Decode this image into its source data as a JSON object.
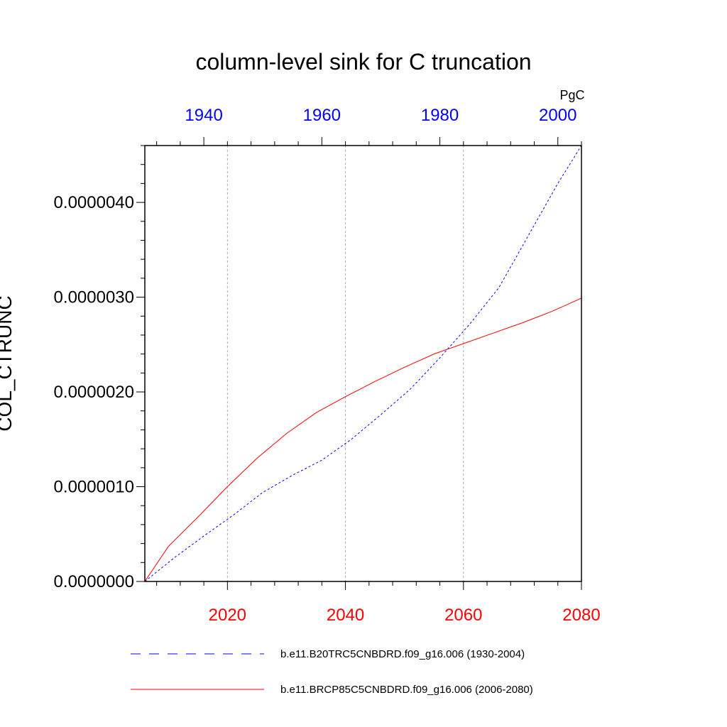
{
  "chart_data": {
    "type": "line",
    "title": "column-level sink for C truncation",
    "ylabel": "COL_CTRUNC",
    "units": "PgC",
    "ylim": [
      0,
      4.6e-06
    ],
    "y_ticks": [
      "0.0000000",
      "0.0000010",
      "0.0000020",
      "0.0000030",
      "0.0000040"
    ],
    "y_tick_values": [
      0,
      1e-06,
      2e-06,
      3e-06,
      4e-06
    ],
    "bottom_axis": {
      "min": 2006,
      "max": 2080,
      "ticks": [
        "2020",
        "2040",
        "2060",
        "2080"
      ],
      "tick_values": [
        2020,
        2040,
        2060,
        2080
      ],
      "color": "#ff0000"
    },
    "top_axis": {
      "min": 1930,
      "max": 2004,
      "ticks": [
        "1940",
        "1960",
        "1980",
        "2000"
      ],
      "tick_values": [
        1940,
        1960,
        1980,
        2000
      ],
      "color": "#0000ff"
    },
    "grid": "vertical dashed at bottom-axis ticks",
    "series": [
      {
        "name": "b.e11.B20TRC5CNBDRD.f09_g16.006 (1930-2004)",
        "axis": "top",
        "color": "#0000ff",
        "style": "dashed",
        "x": [
          1930,
          1935,
          1940,
          1945,
          1950,
          1955,
          1960,
          1965,
          1970,
          1975,
          1980,
          1985,
          1990,
          1995,
          2000,
          2004
        ],
        "y": [
          0,
          2.5e-07,
          4.8e-07,
          7e-07,
          9.4e-07,
          1.12e-06,
          1.28e-06,
          1.5e-06,
          1.76e-06,
          2.03e-06,
          2.36e-06,
          2.71e-06,
          3.1e-06,
          3.65e-06,
          4.2e-06,
          4.6e-06
        ]
      },
      {
        "name": "b.e11.BRCP85C5CNBDRD.f09_g16.006 (2006-2080)",
        "axis": "bottom",
        "color": "#ff0000",
        "style": "solid",
        "x": [
          2006,
          2010,
          2015,
          2020,
          2025,
          2030,
          2035,
          2040,
          2045,
          2050,
          2055,
          2060,
          2065,
          2070,
          2075,
          2080
        ],
        "y": [
          0,
          3.7e-07,
          6.8e-07,
          1e-06,
          1.3e-06,
          1.56e-06,
          1.78e-06,
          1.95e-06,
          2.11e-06,
          2.26e-06,
          2.4e-06,
          2.51e-06,
          2.62e-06,
          2.73e-06,
          2.85e-06,
          2.99e-06
        ]
      }
    ]
  }
}
